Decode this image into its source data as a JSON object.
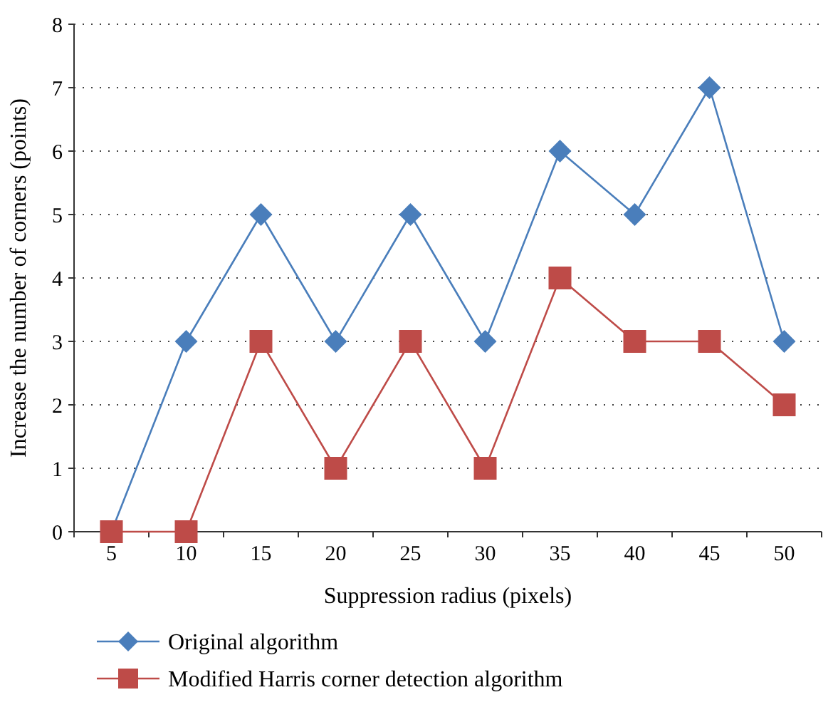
{
  "chart_data": {
    "type": "line",
    "xlabel": "Suppression radius (pixels)",
    "ylabel": "Increase the number of corners (points)",
    "categories": [
      "5",
      "10",
      "15",
      "20",
      "25",
      "30",
      "35",
      "40",
      "45",
      "50"
    ],
    "series": [
      {
        "name": "Original algorithm",
        "color": "#4a7ebb",
        "marker": "diamond",
        "values": [
          0,
          3,
          5,
          3,
          5,
          3,
          6,
          5,
          7,
          3
        ]
      },
      {
        "name": "Modified Harris corner detection algorithm",
        "color": "#be4b48",
        "marker": "square",
        "values": [
          0,
          0,
          3,
          1,
          3,
          1,
          4,
          3,
          3,
          2
        ]
      }
    ],
    "ylim": [
      0,
      8
    ],
    "yticks": [
      0,
      1,
      2,
      3,
      4,
      5,
      6,
      7,
      8
    ],
    "grid": "y",
    "legend": "bottom",
    "line_style": "solid"
  }
}
